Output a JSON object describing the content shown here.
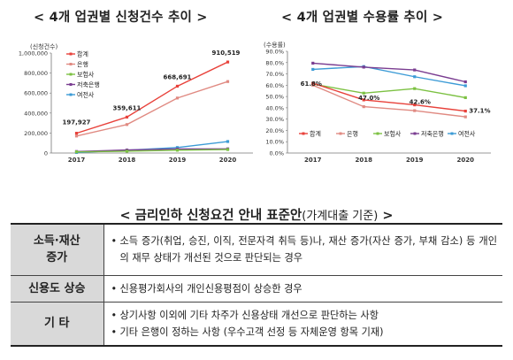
{
  "chart_data": [
    {
      "type": "line",
      "title": "< 4개 업권별 신청건수 추이 >",
      "ylabel": "(신청건수)",
      "categories": [
        "2017",
        "2018",
        "2019",
        "2020"
      ],
      "ylim": [
        0,
        1000000
      ],
      "ytick_labels": [
        "0",
        "200,000",
        "400,000",
        "600,000",
        "800,000",
        "1,000,000"
      ],
      "grid": false,
      "legend_position": "top-left",
      "series": [
        {
          "name": "합계",
          "values": [
            197927,
            359611,
            668691,
            910519
          ],
          "color": "#e8413a",
          "labels": [
            "197,927",
            "359,611",
            "668,691",
            "910,519"
          ]
        },
        {
          "name": "은행",
          "values": [
            170000,
            285000,
            550000,
            715000
          ],
          "color": "#e08a82"
        },
        {
          "name": "보험사",
          "values": [
            12000,
            18000,
            28000,
            35000
          ],
          "color": "#7cc142"
        },
        {
          "name": "저축은행",
          "values": [
            15000,
            30000,
            40000,
            42000
          ],
          "color": "#7a3d91"
        },
        {
          "name": "여전사",
          "values": [
            5000,
            28000,
            55000,
            115000
          ],
          "color": "#3c9bd6"
        }
      ]
    },
    {
      "type": "line",
      "title": "< 4개 업권별 수용률 추이 >",
      "ylabel": "(수용률)",
      "categories": [
        "2017",
        "2018",
        "2019",
        "2020"
      ],
      "ylim": [
        0,
        90
      ],
      "ytick_labels": [
        "0.0%",
        "10.0%",
        "20.0%",
        "30.0%",
        "40.0%",
        "50.0%",
        "60.0%",
        "70.0%",
        "80.0%",
        "90.0%"
      ],
      "grid": false,
      "legend_position": "bottom",
      "series": [
        {
          "name": "합계",
          "values": [
            61.8,
            47.0,
            42.6,
            37.1
          ],
          "color": "#e8413a",
          "labels": [
            "61.8%",
            "47.0%",
            "42.6%",
            "37.1%"
          ]
        },
        {
          "name": "은행",
          "values": [
            60.0,
            41.0,
            37.5,
            32.0
          ],
          "color": "#e08a82"
        },
        {
          "name": "보험사",
          "values": [
            61.0,
            53.0,
            57.0,
            49.0
          ],
          "color": "#7cc142"
        },
        {
          "name": "저축은행",
          "values": [
            79.5,
            76.0,
            73.5,
            63.0
          ],
          "color": "#7a3d91"
        },
        {
          "name": "여전사",
          "values": [
            74.0,
            76.5,
            67.5,
            59.5
          ],
          "color": "#3c9bd6"
        }
      ]
    }
  ],
  "section": {
    "title": "< 금리인하 신청요건 안내 표준안",
    "subtitle": "(가계대출 기준)",
    "suffix": " >"
  },
  "table": {
    "rows": [
      {
        "head": "소득·재산\n증가",
        "bullets": [
          "소득 증가(취업, 승진, 이직, 전문자격 취득 등)나, 재산 증가(자산 증가, 부채 감소) 등 개인의 재무 상태가 개선된 것으로 판단되는 경우"
        ]
      },
      {
        "head": "신용도 상승",
        "bullets": [
          "신용평가회사의 개인신용평점이 상승한 경우"
        ]
      },
      {
        "head": "기 타",
        "bullets": [
          "상기사항 이외에 기타 차주가 신용상태 개선으로 판단하는 사항",
          "기타 은행이 정하는 사항 (우수고객 선정 등 자체운영 항목 기재)"
        ]
      }
    ]
  }
}
